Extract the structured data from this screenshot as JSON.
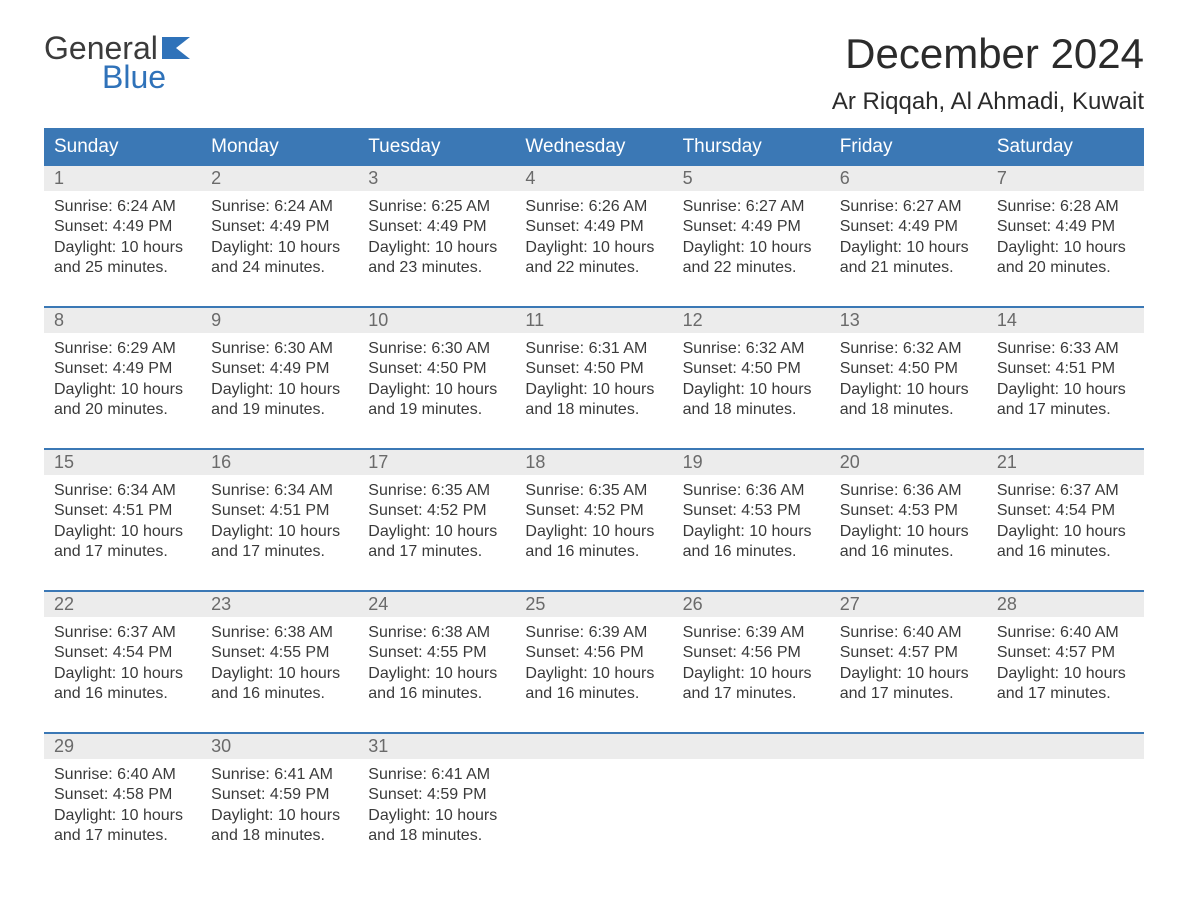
{
  "brand": {
    "word1": "General",
    "word2": "Blue",
    "flag_color": "#2f72b9"
  },
  "title": "December 2024",
  "location": "Ar Riqqah, Al Ahmadi, Kuwait",
  "colors": {
    "header_bg": "#3b78b5",
    "header_text": "#ffffff",
    "daynum_bg": "#ececec",
    "daynum_text": "#6a6a6a",
    "body_text": "#3a3a3a",
    "rule": "#3b78b5",
    "page_bg": "#ffffff"
  },
  "fonts": {
    "title_pt": 42,
    "location_pt": 24,
    "weekday_pt": 19,
    "daynum_pt": 18,
    "body_pt": 16
  },
  "weekdays": [
    "Sunday",
    "Monday",
    "Tuesday",
    "Wednesday",
    "Thursday",
    "Friday",
    "Saturday"
  ],
  "layout": {
    "columns": 7,
    "rows": 5,
    "start_weekday_index": 0
  },
  "days": [
    {
      "n": 1,
      "sunrise": "6:24 AM",
      "sunset": "4:49 PM",
      "daylight": "10 hours and 25 minutes."
    },
    {
      "n": 2,
      "sunrise": "6:24 AM",
      "sunset": "4:49 PM",
      "daylight": "10 hours and 24 minutes."
    },
    {
      "n": 3,
      "sunrise": "6:25 AM",
      "sunset": "4:49 PM",
      "daylight": "10 hours and 23 minutes."
    },
    {
      "n": 4,
      "sunrise": "6:26 AM",
      "sunset": "4:49 PM",
      "daylight": "10 hours and 22 minutes."
    },
    {
      "n": 5,
      "sunrise": "6:27 AM",
      "sunset": "4:49 PM",
      "daylight": "10 hours and 22 minutes."
    },
    {
      "n": 6,
      "sunrise": "6:27 AM",
      "sunset": "4:49 PM",
      "daylight": "10 hours and 21 minutes."
    },
    {
      "n": 7,
      "sunrise": "6:28 AM",
      "sunset": "4:49 PM",
      "daylight": "10 hours and 20 minutes."
    },
    {
      "n": 8,
      "sunrise": "6:29 AM",
      "sunset": "4:49 PM",
      "daylight": "10 hours and 20 minutes."
    },
    {
      "n": 9,
      "sunrise": "6:30 AM",
      "sunset": "4:49 PM",
      "daylight": "10 hours and 19 minutes."
    },
    {
      "n": 10,
      "sunrise": "6:30 AM",
      "sunset": "4:50 PM",
      "daylight": "10 hours and 19 minutes."
    },
    {
      "n": 11,
      "sunrise": "6:31 AM",
      "sunset": "4:50 PM",
      "daylight": "10 hours and 18 minutes."
    },
    {
      "n": 12,
      "sunrise": "6:32 AM",
      "sunset": "4:50 PM",
      "daylight": "10 hours and 18 minutes."
    },
    {
      "n": 13,
      "sunrise": "6:32 AM",
      "sunset": "4:50 PM",
      "daylight": "10 hours and 18 minutes."
    },
    {
      "n": 14,
      "sunrise": "6:33 AM",
      "sunset": "4:51 PM",
      "daylight": "10 hours and 17 minutes."
    },
    {
      "n": 15,
      "sunrise": "6:34 AM",
      "sunset": "4:51 PM",
      "daylight": "10 hours and 17 minutes."
    },
    {
      "n": 16,
      "sunrise": "6:34 AM",
      "sunset": "4:51 PM",
      "daylight": "10 hours and 17 minutes."
    },
    {
      "n": 17,
      "sunrise": "6:35 AM",
      "sunset": "4:52 PM",
      "daylight": "10 hours and 17 minutes."
    },
    {
      "n": 18,
      "sunrise": "6:35 AM",
      "sunset": "4:52 PM",
      "daylight": "10 hours and 16 minutes."
    },
    {
      "n": 19,
      "sunrise": "6:36 AM",
      "sunset": "4:53 PM",
      "daylight": "10 hours and 16 minutes."
    },
    {
      "n": 20,
      "sunrise": "6:36 AM",
      "sunset": "4:53 PM",
      "daylight": "10 hours and 16 minutes."
    },
    {
      "n": 21,
      "sunrise": "6:37 AM",
      "sunset": "4:54 PM",
      "daylight": "10 hours and 16 minutes."
    },
    {
      "n": 22,
      "sunrise": "6:37 AM",
      "sunset": "4:54 PM",
      "daylight": "10 hours and 16 minutes."
    },
    {
      "n": 23,
      "sunrise": "6:38 AM",
      "sunset": "4:55 PM",
      "daylight": "10 hours and 16 minutes."
    },
    {
      "n": 24,
      "sunrise": "6:38 AM",
      "sunset": "4:55 PM",
      "daylight": "10 hours and 16 minutes."
    },
    {
      "n": 25,
      "sunrise": "6:39 AM",
      "sunset": "4:56 PM",
      "daylight": "10 hours and 16 minutes."
    },
    {
      "n": 26,
      "sunrise": "6:39 AM",
      "sunset": "4:56 PM",
      "daylight": "10 hours and 17 minutes."
    },
    {
      "n": 27,
      "sunrise": "6:40 AM",
      "sunset": "4:57 PM",
      "daylight": "10 hours and 17 minutes."
    },
    {
      "n": 28,
      "sunrise": "6:40 AM",
      "sunset": "4:57 PM",
      "daylight": "10 hours and 17 minutes."
    },
    {
      "n": 29,
      "sunrise": "6:40 AM",
      "sunset": "4:58 PM",
      "daylight": "10 hours and 17 minutes."
    },
    {
      "n": 30,
      "sunrise": "6:41 AM",
      "sunset": "4:59 PM",
      "daylight": "10 hours and 18 minutes."
    },
    {
      "n": 31,
      "sunrise": "6:41 AM",
      "sunset": "4:59 PM",
      "daylight": "10 hours and 18 minutes."
    }
  ],
  "labels": {
    "sunrise": "Sunrise:",
    "sunset": "Sunset:",
    "daylight": "Daylight:"
  }
}
